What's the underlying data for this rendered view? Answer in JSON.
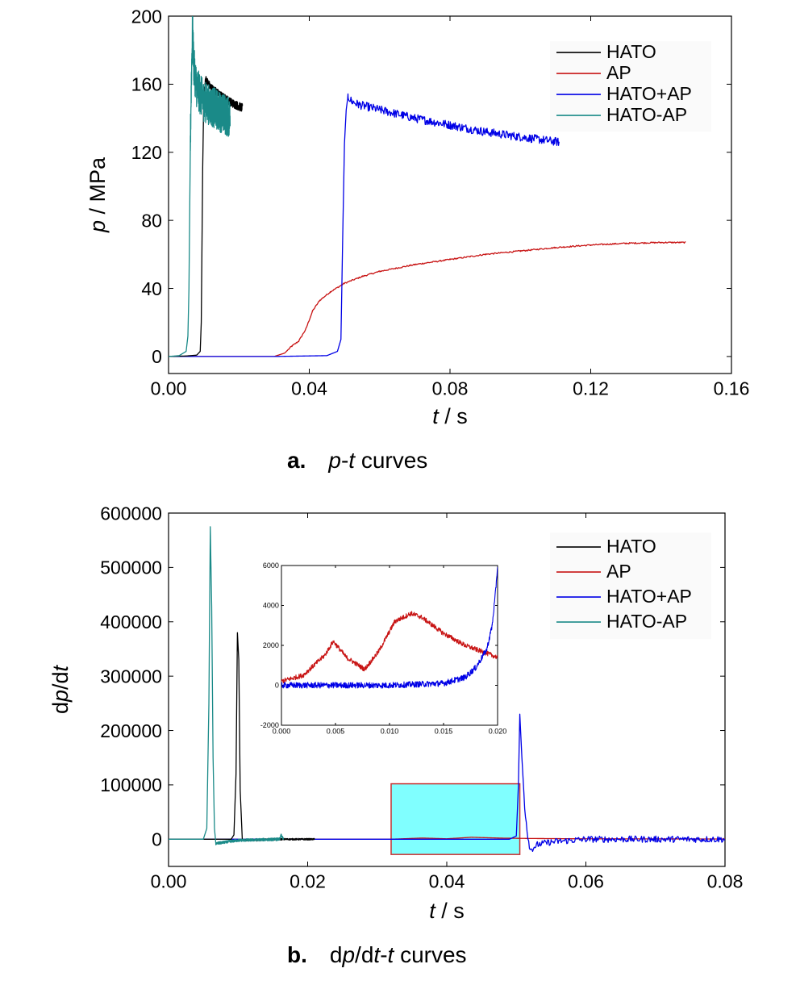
{
  "charts": [
    {
      "type": "line",
      "caption_letter": "a.",
      "caption_parts": [
        {
          "t": "p",
          "i": true
        },
        {
          "t": "-",
          "i": false
        },
        {
          "t": "t",
          "i": true
        },
        {
          "t": " curves",
          "i": false
        }
      ],
      "xlabel_parts": [
        {
          "t": "t",
          "i": true
        },
        {
          "t": " / s",
          "i": false
        }
      ],
      "ylabel_parts": [
        {
          "t": "p",
          "i": true
        },
        {
          "t": " / MPa",
          "i": false
        }
      ],
      "xlim": [
        0,
        0.16
      ],
      "ylim": [
        -10,
        200
      ],
      "xticks": [
        "0.00",
        "0.04",
        "0.08",
        "0.12",
        "0.16"
      ],
      "xtick_values": [
        0,
        0.04,
        0.08,
        0.12,
        0.16
      ],
      "yticks": [
        "0",
        "40",
        "80",
        "120",
        "160",
        "200"
      ],
      "ytick_values": [
        0,
        40,
        80,
        120,
        160,
        200
      ],
      "legend_position": "top-right",
      "series": [
        {
          "name": "HATO",
          "color": "#000000",
          "x": [
            0,
            0.005,
            0.008,
            0.009,
            0.0093,
            0.0097,
            0.01,
            0.0105,
            0.012,
            0.015,
            0.018,
            0.021
          ],
          "y": [
            0,
            0.3,
            0.8,
            3,
            20,
            110,
            150,
            163,
            158,
            153,
            149,
            146
          ],
          "noise": 2.5,
          "noise_from": 0.01
        },
        {
          "name": "AP",
          "color": "#c81414",
          "x": [
            0,
            0.03,
            0.033,
            0.035,
            0.037,
            0.039,
            0.041,
            0.043,
            0.046,
            0.05,
            0.055,
            0.06,
            0.07,
            0.08,
            0.09,
            0.1,
            0.11,
            0.12,
            0.13,
            0.14,
            0.147
          ],
          "y": [
            0,
            0,
            2,
            6,
            9,
            16,
            27,
            33,
            38,
            43,
            47,
            50,
            54,
            57,
            60,
            62,
            64,
            65.5,
            66.5,
            67,
            67
          ],
          "noise": 0.4,
          "noise_from": 0.034
        },
        {
          "name": "HATO+AP",
          "color": "#0000e6",
          "x": [
            0,
            0.03,
            0.045,
            0.048,
            0.049,
            0.0495,
            0.05,
            0.0505,
            0.051,
            0.052,
            0.054,
            0.06,
            0.07,
            0.08,
            0.09,
            0.1,
            0.111
          ],
          "y": [
            0,
            0,
            0.5,
            3,
            10,
            70,
            125,
            145,
            153,
            150,
            148,
            145,
            140,
            136,
            132,
            129,
            126
          ],
          "noise": 2.5,
          "noise_from": 0.051
        },
        {
          "name": "HATO-AP",
          "color": "#1a8a88",
          "x": [
            0,
            0.003,
            0.005,
            0.0055,
            0.0058,
            0.0062,
            0.0065,
            0.0068,
            0.0072,
            0.008,
            0.01,
            0.013,
            0.016,
            0.0175
          ],
          "y": [
            0,
            0.5,
            3,
            12,
            40,
            125,
            165,
            192,
            170,
            158,
            150,
            146,
            142,
            140
          ],
          "noise": 12,
          "noise_from": 0.0062
        }
      ]
    },
    {
      "type": "line",
      "caption_letter": "b.",
      "caption_parts": [
        {
          "t": "d",
          "i": false
        },
        {
          "t": "p",
          "i": true
        },
        {
          "t": "/d",
          "i": false
        },
        {
          "t": "t",
          "i": true
        },
        {
          "t": "-",
          "i": false
        },
        {
          "t": "t",
          "i": true
        },
        {
          "t": " curves",
          "i": false
        }
      ],
      "xlabel_parts": [
        {
          "t": "t",
          "i": true
        },
        {
          "t": " / s",
          "i": false
        }
      ],
      "ylabel_parts": [
        {
          "t": "d",
          "i": false
        },
        {
          "t": "p",
          "i": true
        },
        {
          "t": "/d",
          "i": false
        },
        {
          "t": "t",
          "i": true
        }
      ],
      "xlim": [
        0,
        0.08
      ],
      "ylim": [
        -50000,
        600000
      ],
      "xticks": [
        "0.00",
        "0.02",
        "0.04",
        "0.06",
        "0.08"
      ],
      "xtick_values": [
        0,
        0.02,
        0.04,
        0.06,
        0.08
      ],
      "yticks": [
        "0",
        "100000",
        "200000",
        "300000",
        "400000",
        "500000",
        "600000"
      ],
      "ytick_values": [
        0,
        100000,
        200000,
        300000,
        400000,
        500000,
        600000
      ],
      "legend_position": "top-right",
      "highlight_region": {
        "x": [
          0.032,
          0.0505
        ],
        "y": [
          -28000,
          102000
        ],
        "fill": "#80ffff",
        "stroke": "#c83232"
      },
      "series": [
        {
          "name": "HATO",
          "color": "#000000",
          "x": [
            0,
            0.009,
            0.0094,
            0.0097,
            0.0099,
            0.0101,
            0.0103,
            0.0106,
            0.011,
            0.015,
            0.021
          ],
          "y": [
            0,
            0,
            8000,
            120000,
            380000,
            330000,
            90000,
            0,
            -2000,
            0,
            0
          ],
          "noise": 1500,
          "noise_from": 0.011
        },
        {
          "name": "AP",
          "color": "#c81414",
          "x": [
            0,
            0.032,
            0.0365,
            0.04,
            0.0435,
            0.048,
            0.052,
            0.06,
            0.08
          ],
          "y": [
            0,
            0,
            2200,
            800,
            3600,
            2000,
            1400,
            800,
            400
          ],
          "noise": 0,
          "noise_from": 1
        },
        {
          "name": "HATO+AP",
          "color": "#0000e6",
          "x": [
            0,
            0.049,
            0.05,
            0.0503,
            0.0505,
            0.0508,
            0.0512,
            0.0516,
            0.052,
            0.053,
            0.055,
            0.06,
            0.07,
            0.08
          ],
          "y": [
            0,
            0,
            6000,
            100000,
            230000,
            150000,
            60000,
            10000,
            -20000,
            -10000,
            -5000,
            0,
            0,
            0
          ],
          "noise": 6000,
          "noise_from": 0.0512
        },
        {
          "name": "HATO-AP",
          "color": "#1a8a88",
          "x": [
            0,
            0.005,
            0.0055,
            0.0058,
            0.006,
            0.0062,
            0.0064,
            0.0066,
            0.0068,
            0.01,
            0.016,
            0.0162,
            0.0165
          ],
          "y": [
            0,
            0,
            20000,
            250000,
            575000,
            430000,
            150000,
            20000,
            -8000,
            -2000,
            0,
            8000,
            0
          ],
          "noise": 2500,
          "noise_from": 0.0068
        }
      ],
      "inset": {
        "xlim": [
          0,
          0.02
        ],
        "ylim": [
          -2000,
          6000
        ],
        "xticks": [
          "0.000",
          "0.005",
          "0.010",
          "0.015",
          "0.020"
        ],
        "xtick_values": [
          0,
          0.005,
          0.01,
          0.015,
          0.02
        ],
        "yticks": [
          "-2000",
          "0",
          "2000",
          "4000",
          "6000"
        ],
        "ytick_values": [
          -2000,
          0,
          2000,
          4000,
          6000
        ],
        "series": [
          {
            "name": "AP",
            "color": "#c81414",
            "x": [
              0,
              0.002,
              0.004,
              0.0048,
              0.006,
              0.0077,
              0.009,
              0.0105,
              0.012,
              0.013,
              0.015,
              0.017,
              0.019,
              0.02
            ],
            "y": [
              200,
              500,
              1500,
              2200,
              1400,
              800,
              1700,
              3200,
              3600,
              3400,
              2600,
              2000,
              1600,
              1400
            ],
            "noise": 120,
            "noise_from": 0
          },
          {
            "name": "HATO+AP",
            "color": "#0000e6",
            "x": [
              0,
              0.01,
              0.015,
              0.017,
              0.018,
              0.019,
              0.0195,
              0.0198,
              0.02
            ],
            "y": [
              0,
              0,
              100,
              400,
              900,
              1800,
              3000,
              4600,
              6000
            ],
            "noise": 150,
            "noise_from": 0
          }
        ]
      }
    }
  ]
}
